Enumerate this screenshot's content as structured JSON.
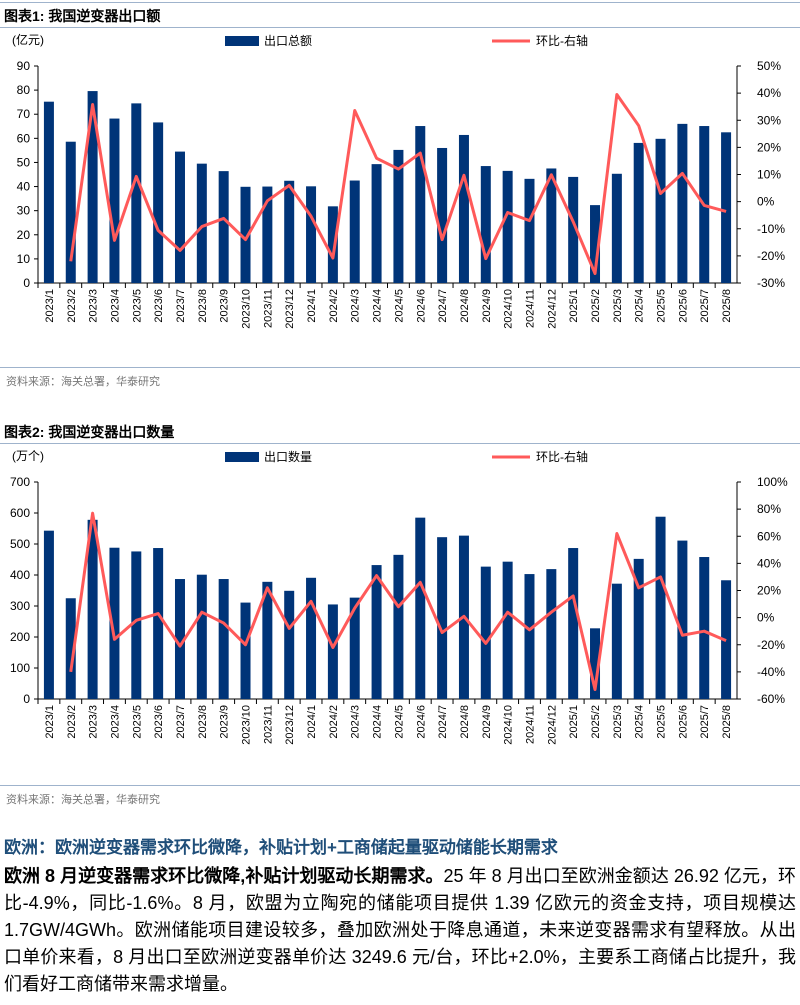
{
  "figures": [
    {
      "title": "图表1:  我国逆变器出口额",
      "source": "资料来源：海关总署，华泰研究",
      "chart_data": {
        "type": "bar+line",
        "title": "我国逆变器出口额",
        "ylabel": "(亿元)",
        "ylim": [
          0,
          90
        ],
        "yticks": [
          "0",
          "10",
          "20",
          "30",
          "40",
          "50",
          "60",
          "70",
          "80",
          "90"
        ],
        "y2lim": [
          -30,
          50
        ],
        "y2ticks": [
          "-30%",
          "-20%",
          "-10%",
          "0%",
          "10%",
          "20%",
          "30%",
          "40%",
          "50%"
        ],
        "categories": [
          "2023/1",
          "2023/2",
          "2023/3",
          "2023/4",
          "2023/5",
          "2023/6",
          "2023/7",
          "2023/8",
          "2023/9",
          "2023/10",
          "2023/11",
          "2023/12",
          "2024/1",
          "2024/2",
          "2024/3",
          "2024/4",
          "2024/5",
          "2024/6",
          "2024/7",
          "2024/8",
          "2024/9",
          "2024/10",
          "2024/11",
          "2024/12",
          "2025/1",
          "2025/2",
          "2025/3",
          "2025/4",
          "2025/5",
          "2025/6",
          "2025/7",
          "2025/8"
        ],
        "series": [
          {
            "name": "出口总额",
            "type": "bar",
            "axis": "left",
            "color": "#003478",
            "values": [
              75.2,
              58.6,
              79.6,
              68.2,
              74.5,
              66.6,
              54.5,
              49.5,
              46.4,
              39.9,
              40.0,
              42.4,
              40.1,
              31.8,
              42.5,
              49.3,
              55.2,
              65.1,
              56.0,
              61.4,
              48.5,
              46.5,
              43.2,
              47.5,
              44.0,
              32.3,
              45.3,
              58.1,
              59.8,
              66.0,
              65.1,
              62.5
            ]
          },
          {
            "name": "环比-右轴",
            "type": "line",
            "axis": "right",
            "color": "#ff5a5a",
            "values": [
              null,
              -22,
              35.8,
              -14.3,
              9.3,
              -10.6,
              -18,
              -9.2,
              -6.2,
              -14,
              0.3,
              6,
              -5.4,
              -20.8,
              33.6,
              16,
              12,
              17.9,
              -14,
              9.7,
              -21,
              -4,
              -7,
              9.9,
              -7.4,
              -26.5,
              39.5,
              28,
              3,
              10.4,
              -1.4,
              -3.6
            ]
          }
        ],
        "legend": "top"
      }
    },
    {
      "title": "图表2:  我国逆变器出口数量",
      "source": "资料来源：海关总署，华泰研究",
      "chart_data": {
        "type": "bar+line",
        "title": "我国逆变器出口数量",
        "ylabel": "(万个)",
        "ylim": [
          0,
          700
        ],
        "yticks": [
          "0",
          "100",
          "200",
          "300",
          "400",
          "500",
          "600",
          "700"
        ],
        "y2lim": [
          -60,
          100
        ],
        "y2ticks": [
          "-60%",
          "-40%",
          "-20%",
          "0%",
          "20%",
          "40%",
          "60%",
          "80%",
          "100%"
        ],
        "categories": [
          "2023/1",
          "2023/2",
          "2023/3",
          "2023/4",
          "2023/5",
          "2023/6",
          "2023/7",
          "2023/8",
          "2023/9",
          "2023/10",
          "2023/11",
          "2023/12",
          "2024/1",
          "2024/2",
          "2024/3",
          "2024/4",
          "2024/5",
          "2024/6",
          "2024/7",
          "2024/8",
          "2024/9",
          "2024/10",
          "2024/11",
          "2024/12",
          "2025/1",
          "2025/2",
          "2025/3",
          "2025/4",
          "2025/5",
          "2025/6",
          "2025/7",
          "2025/8"
        ],
        "series": [
          {
            "name": "出口数量",
            "type": "bar",
            "axis": "left",
            "color": "#003478",
            "values": [
              543,
              325,
              578,
              488,
              476,
              487,
              387,
              401,
              387,
              311,
              378,
              349,
              391,
              305,
              327,
              432,
              465,
              585,
              522,
              527,
              427,
              443,
              403,
              419,
              487,
              228,
              372,
              452,
              588,
              511,
              458,
              383
            ]
          },
          {
            "name": "环比-右轴",
            "type": "line",
            "axis": "right",
            "color": "#ff5a5a",
            "values": [
              null,
              -40,
              77,
              -16,
              -2,
              3,
              -21,
              4,
              -4,
              -20,
              22,
              -8,
              12,
              -22,
              7,
              31,
              8,
              26,
              -11,
              1,
              -19,
              4,
              -9,
              4,
              16,
              -53,
              62,
              22,
              30,
              -13,
              -10,
              -17
            ]
          }
        ],
        "legend": "top"
      }
    }
  ],
  "section": {
    "title": "欧洲：欧洲逆变器需求环比微降，补贴计划+工商储起量驱动储能长期需求",
    "lead": "欧洲 8 月逆变器需求环比微降,补贴计划驱动长期需求。",
    "body": "25 年 8 月出口至欧洲金额达 26.92 亿元，环比-4.9%，同比-1.6%。8 月，欧盟为立陶宛的储能项目提供 1.39 亿欧元的资金支持，项目规模达 1.7GW/4GWh。欧洲储能项目建设较多，叠加欧洲处于降息通道，未来逆变器需求有望释放。从出口单价来看，8 月出口至欧洲逆变器单价达 3249.6 元/台，环比+2.0%，主要系工商储占比提升，我们看好工商储带来需求增量。"
  }
}
